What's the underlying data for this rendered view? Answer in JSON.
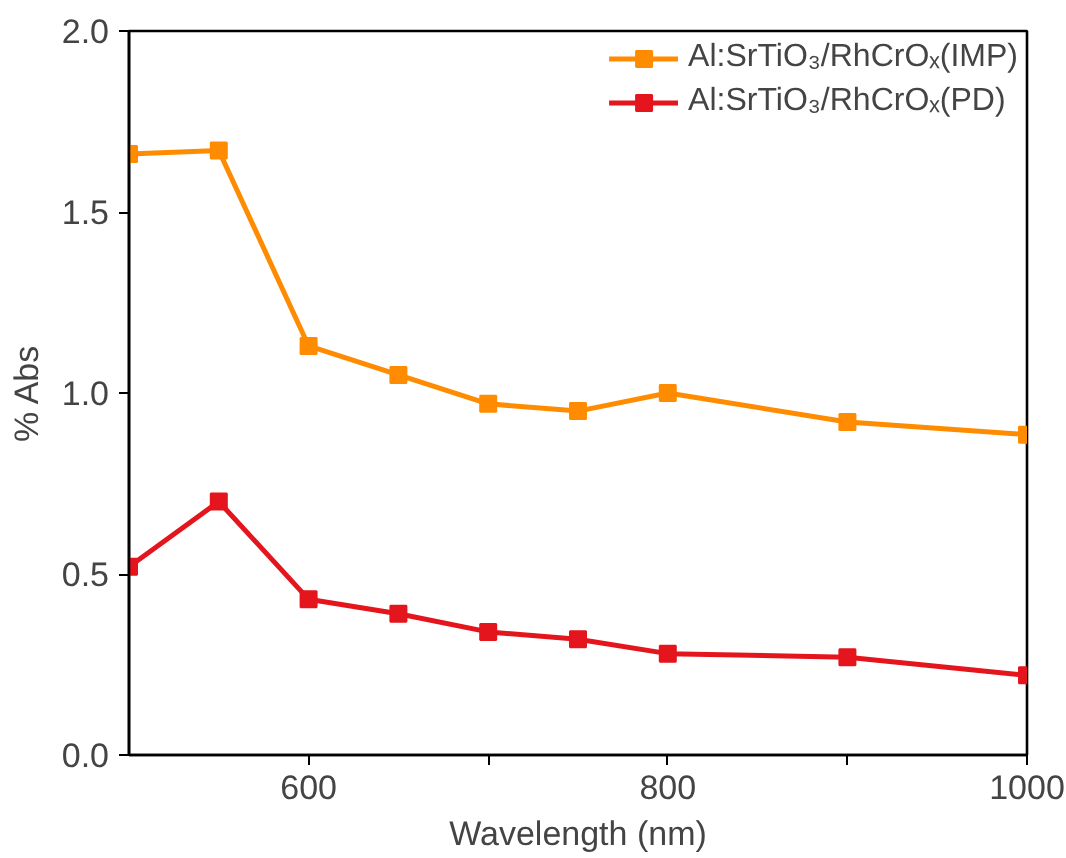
{
  "chart_data": {
    "type": "line",
    "xlabel": "Wavelength (nm)",
    "ylabel": "% Abs",
    "x": [
      500,
      550,
      600,
      650,
      700,
      750,
      800,
      900,
      1000
    ],
    "series": [
      {
        "name": "Al:SrTiO₃/RhCrOₓ(IMP)",
        "color": "#ff8c00",
        "values": [
          1.66,
          1.67,
          1.13,
          1.05,
          0.97,
          0.95,
          1.0,
          0.92,
          0.885
        ]
      },
      {
        "name": "Al:SrTiO₃/RhCrOₓ(PD)",
        "color": "#e4151c",
        "values": [
          0.52,
          0.7,
          0.43,
          0.39,
          0.34,
          0.32,
          0.28,
          0.27,
          0.22
        ]
      }
    ],
    "xlim": [
      500,
      1000
    ],
    "ylim": [
      0,
      2
    ],
    "xticks": [
      600,
      {
        "value": 700,
        "label": null
      },
      800,
      {
        "value": 900,
        "label": null
      },
      1000
    ],
    "yticks": [
      {
        "value": 0,
        "label": "0.0"
      },
      {
        "value": 0.5,
        "label": "0.5"
      },
      {
        "value": 1,
        "label": "1.0"
      },
      {
        "value": 1.5,
        "label": "1.5"
      },
      {
        "value": 2,
        "label": "2.0"
      }
    ],
    "grid": false,
    "legend": "top right",
    "marker": "square",
    "line_style": "solid"
  }
}
